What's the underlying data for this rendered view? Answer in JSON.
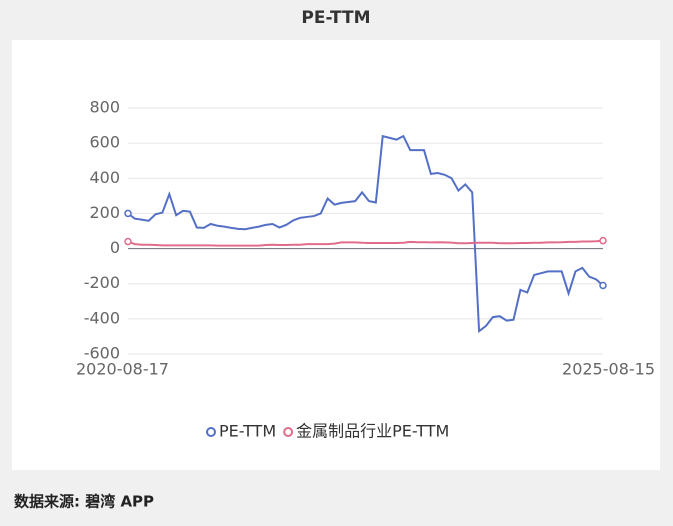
{
  "chart_data": {
    "type": "line",
    "title": "PE-TTM",
    "categories": [
      "2020-08-17",
      null,
      null,
      null,
      null,
      null,
      null,
      null,
      null,
      null,
      null,
      null,
      null,
      null,
      null,
      null,
      null,
      null,
      null,
      null,
      null,
      null,
      null,
      null,
      null,
      null,
      null,
      null,
      null,
      null,
      null,
      null,
      null,
      null,
      null,
      null,
      null,
      null,
      null,
      null,
      null,
      null,
      null,
      null,
      null,
      null,
      null,
      null,
      null,
      null,
      null,
      null,
      null,
      null,
      null,
      null,
      null,
      null,
      null,
      null,
      null,
      null,
      null,
      null,
      null,
      null,
      null,
      null,
      null,
      "2025-08-15"
    ],
    "series": [
      {
        "name": "PE-TTM",
        "color": "#5470c6",
        "values": [
          200,
          170,
          165,
          158,
          195,
          205,
          310,
          190,
          215,
          210,
          120,
          118,
          140,
          130,
          125,
          118,
          112,
          110,
          118,
          125,
          135,
          140,
          120,
          135,
          160,
          175,
          180,
          185,
          200,
          285,
          250,
          260,
          265,
          270,
          320,
          270,
          262,
          640,
          630,
          620,
          640,
          560,
          560,
          560,
          425,
          430,
          420,
          400,
          330,
          365,
          320,
          -470,
          -440,
          -390,
          -385,
          -410,
          -405,
          -235,
          -250,
          -150,
          -140,
          -130,
          -130,
          -130,
          -255,
          -130,
          -110,
          -160,
          -175,
          -210
        ]
      },
      {
        "name": "金属制品行业PE-TTM",
        "color": "#e06c8a",
        "values": [
          40,
          25,
          22,
          22,
          20,
          18,
          18,
          18,
          18,
          18,
          18,
          18,
          18,
          17,
          17,
          17,
          17,
          17,
          17,
          17,
          20,
          22,
          20,
          20,
          22,
          22,
          25,
          25,
          25,
          25,
          28,
          35,
          35,
          35,
          33,
          32,
          32,
          32,
          32,
          32,
          33,
          38,
          36,
          36,
          35,
          36,
          35,
          34,
          30,
          30,
          32,
          33,
          33,
          33,
          30,
          30,
          30,
          32,
          32,
          33,
          33,
          35,
          35,
          36,
          38,
          38,
          40,
          40,
          42,
          45
        ]
      }
    ],
    "ylim": [
      -600,
      800
    ],
    "yticks": [
      -600,
      -400,
      -200,
      0,
      200,
      400,
      600,
      800
    ],
    "grid": true,
    "source": "数据来源: 碧湾 APP"
  }
}
